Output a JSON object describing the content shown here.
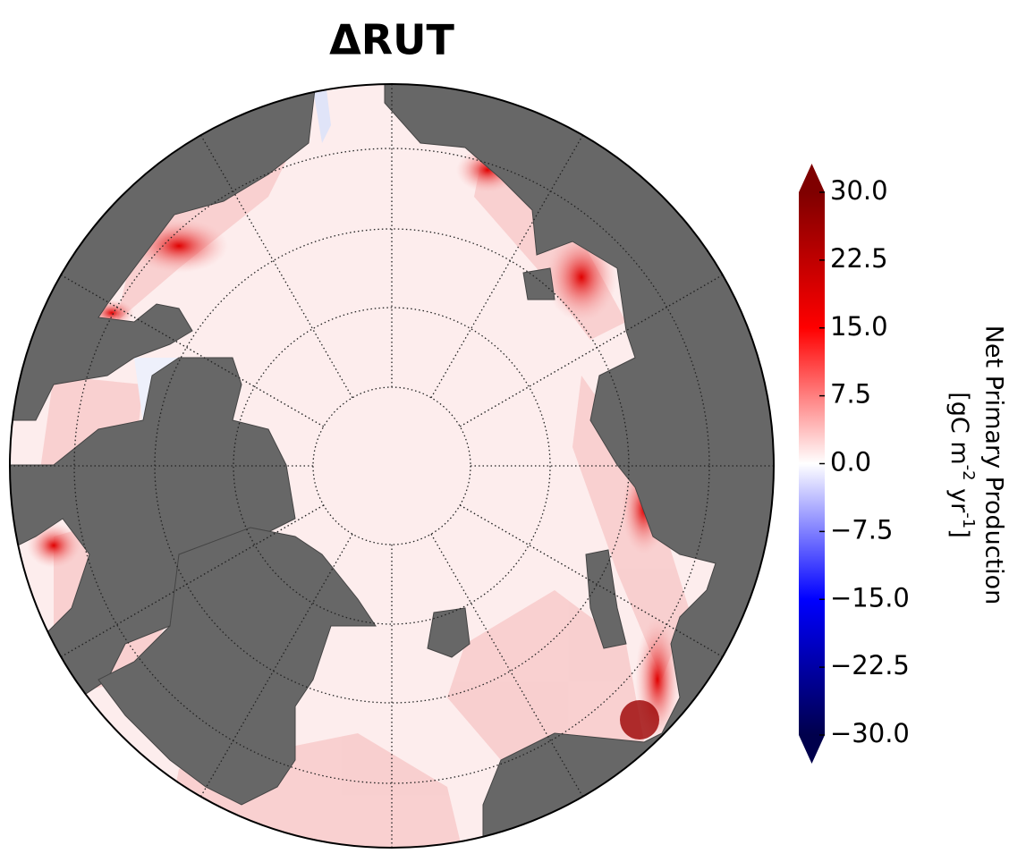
{
  "chart_data": {
    "type": "map",
    "title": "ΔRUT",
    "colorbar": {
      "label": "Net Primary Production",
      "units_parts": [
        "[gC m",
        "-2",
        " yr",
        "-1",
        "]"
      ],
      "lim": [
        -30,
        30
      ],
      "extend": "both",
      "colors": [
        "#00004c",
        "#0000ff",
        "#ffffff",
        "#ff0000",
        "#7f0000"
      ],
      "ticks": [
        {
          "value": 30,
          "label": "30.0"
        },
        {
          "value": 22.5,
          "label": "22.5"
        },
        {
          "value": 15,
          "label": "15.0"
        },
        {
          "value": 7.5,
          "label": "7.5"
        },
        {
          "value": 0,
          "label": "0.0"
        },
        {
          "value": -7.5,
          "label": "−7.5"
        },
        {
          "value": -15,
          "label": "−15.0"
        },
        {
          "value": -22.5,
          "label": "−22.5"
        },
        {
          "value": -30,
          "label": "−30.0"
        }
      ]
    }
  }
}
